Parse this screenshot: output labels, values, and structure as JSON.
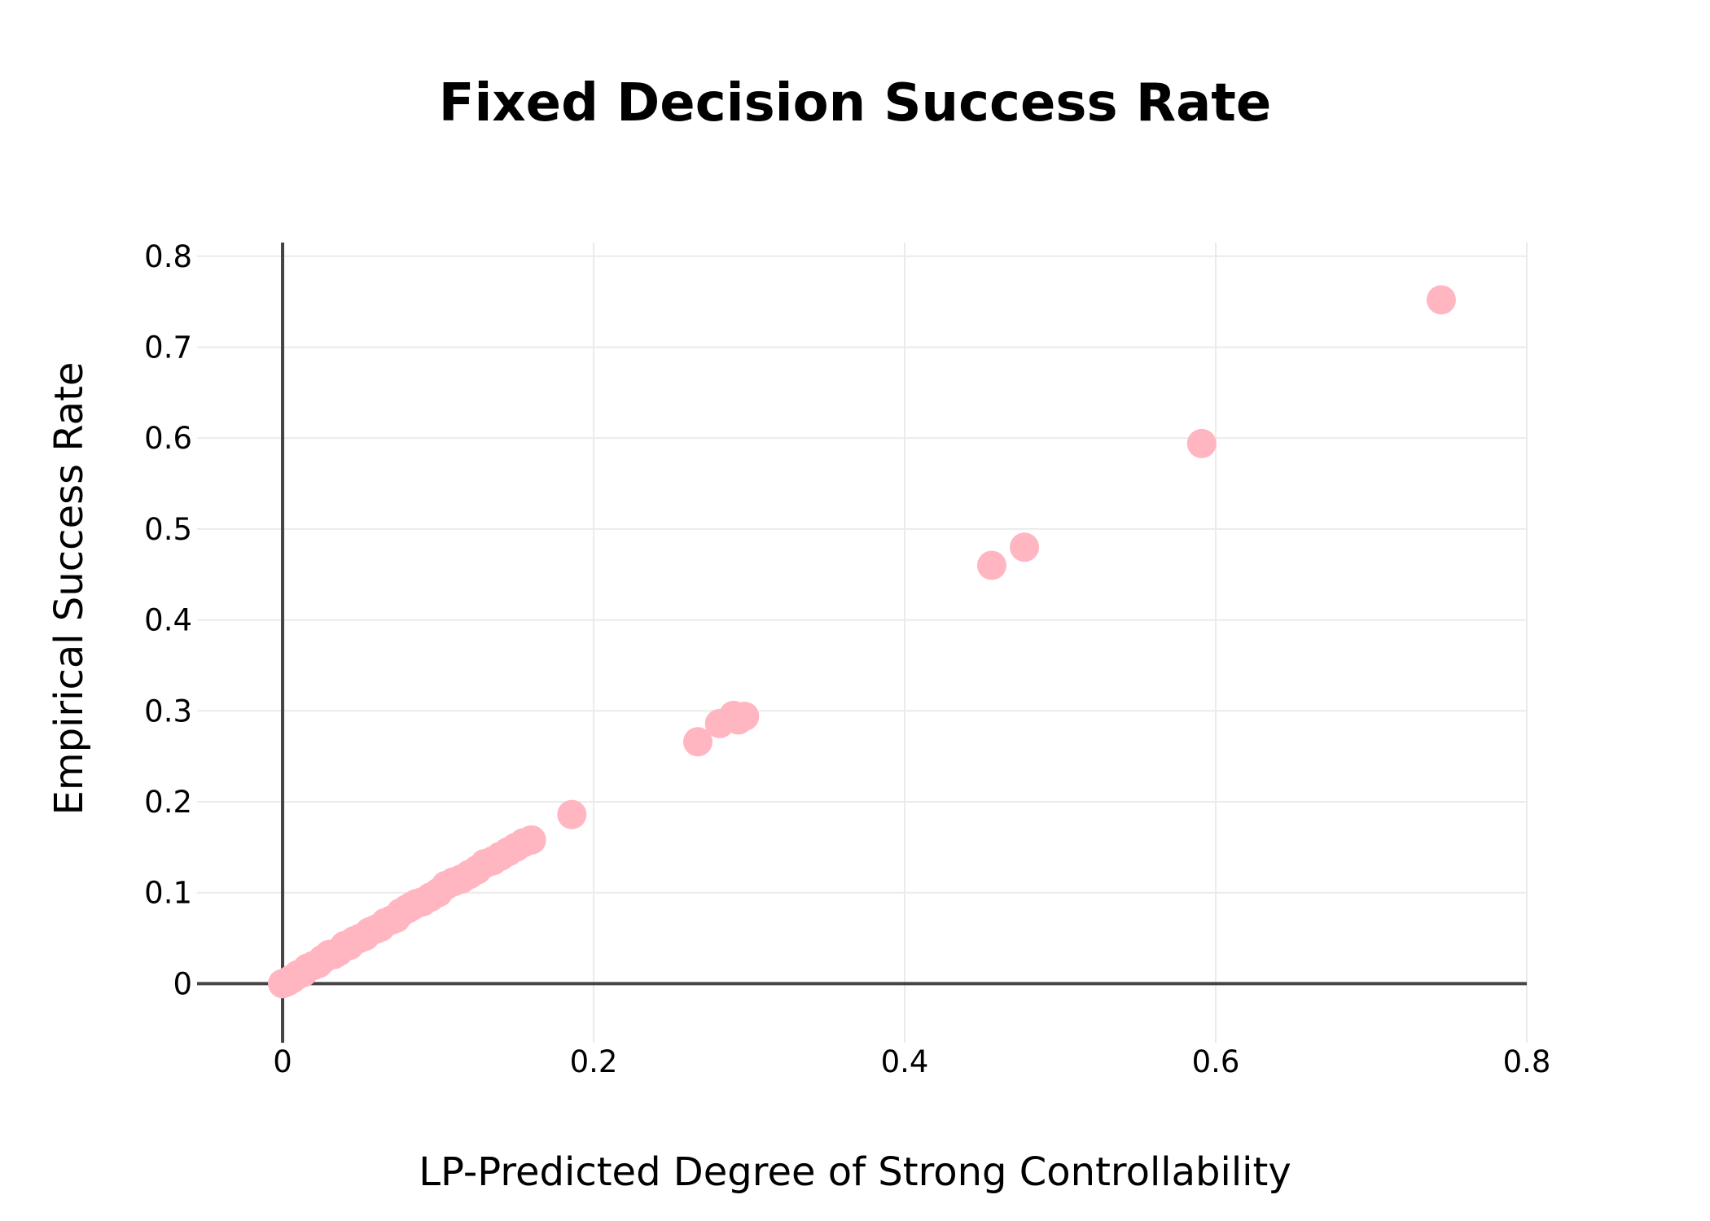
{
  "chart_data": {
    "type": "scatter",
    "title": "Fixed Decision Success Rate",
    "xlabel": "LP-Predicted Degree of Strong Controllability",
    "ylabel": "Empirical Success Rate",
    "xlim": [
      -0.055,
      0.8
    ],
    "ylim": [
      -0.065,
      0.815
    ],
    "xticks": [
      0,
      0.2,
      0.4,
      0.6,
      0.8
    ],
    "xtick_labels": [
      "0",
      "0.2",
      "0.4",
      "0.6",
      "0.8"
    ],
    "yticks": [
      0,
      0.1,
      0.2,
      0.3,
      0.4,
      0.5,
      0.6,
      0.7,
      0.8
    ],
    "ytick_labels": [
      "0",
      "0.1",
      "0.2",
      "0.3",
      "0.4",
      "0.5",
      "0.6",
      "0.7",
      "0.8"
    ],
    "grid": true,
    "legend": "none",
    "marker_color": "#ffb6c1",
    "series": [
      {
        "x": [
          0,
          0.003,
          0.006,
          0.01,
          0.013,
          0.016,
          0.02,
          0.023,
          0.026,
          0.03,
          0.033,
          0.036,
          0.04,
          0.043,
          0.046,
          0.05,
          0.053,
          0.056,
          0.06,
          0.063,
          0.066,
          0.07,
          0.073,
          0.076,
          0.08,
          0.083,
          0.086,
          0.09,
          0.095,
          0.1,
          0.105,
          0.11,
          0.115,
          0.12,
          0.125,
          0.13,
          0.135,
          0.14,
          0.145,
          0.15,
          0.155,
          0.16,
          0.186,
          0.267,
          0.281,
          0.29,
          0.293,
          0.297,
          0.456,
          0.477,
          0.591,
          0.745
        ],
        "y": [
          0,
          0.002,
          0.005,
          0.01,
          0.012,
          0.017,
          0.02,
          0.022,
          0.027,
          0.032,
          0.032,
          0.035,
          0.042,
          0.042,
          0.047,
          0.05,
          0.052,
          0.057,
          0.06,
          0.062,
          0.067,
          0.07,
          0.072,
          0.078,
          0.082,
          0.085,
          0.088,
          0.09,
          0.095,
          0.1,
          0.108,
          0.112,
          0.115,
          0.12,
          0.125,
          0.132,
          0.135,
          0.14,
          0.145,
          0.15,
          0.155,
          0.158,
          0.186,
          0.266,
          0.286,
          0.295,
          0.29,
          0.294,
          0.46,
          0.48,
          0.594,
          0.752
        ]
      }
    ]
  }
}
